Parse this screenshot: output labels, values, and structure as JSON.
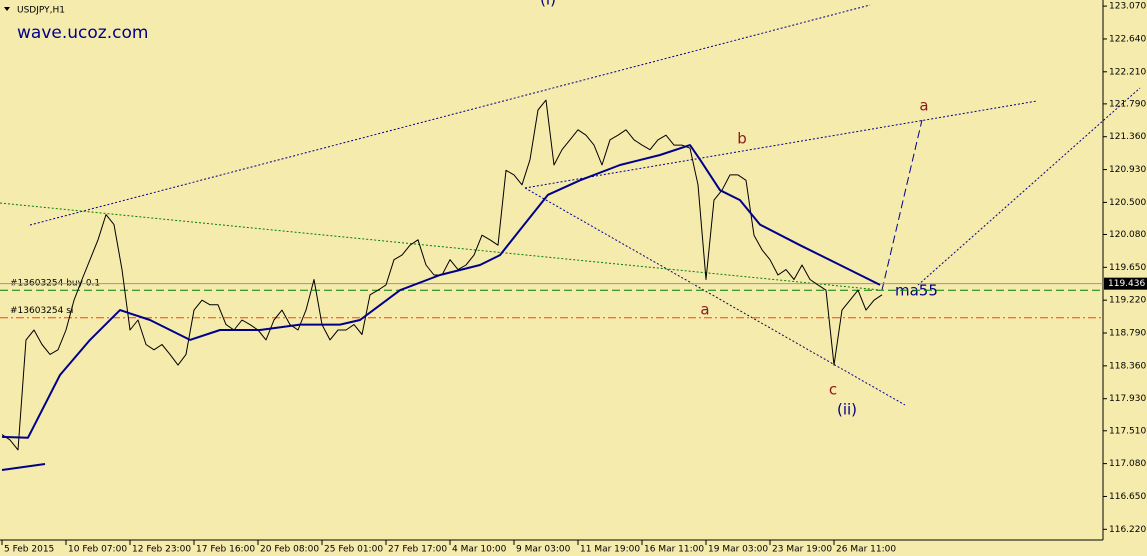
{
  "chart_data": {
    "type": "line",
    "title": "USDJPY,H1",
    "watermark": "wave.ucoz.com",
    "xlim": [
      0,
      110
    ],
    "ylim": [
      116.08,
      123.15
    ],
    "xticks": [
      {
        "value": 0,
        "label": "5 Feb 2015"
      },
      {
        "value": 8,
        "label": "10 Feb 07:00"
      },
      {
        "value": 16,
        "label": "12 Feb 23:00"
      },
      {
        "value": 24,
        "label": "17 Feb 16:00"
      },
      {
        "value": 32,
        "label": "20 Feb 08:00"
      },
      {
        "value": 40,
        "label": "25 Feb 01:00"
      },
      {
        "value": 48,
        "label": "27 Feb 17:00"
      },
      {
        "value": 56,
        "label": "4 Mar 10:00"
      },
      {
        "value": 64,
        "label": "9 Mar 03:00"
      },
      {
        "value": 72,
        "label": "11 Mar 19:00"
      },
      {
        "value": 80,
        "label": "16 Mar 11:00"
      },
      {
        "value": 88,
        "label": "19 Mar 03:00"
      },
      {
        "value": 96,
        "label": "23 Mar 19:00"
      },
      {
        "value": 104,
        "label": "26 Mar 11:00"
      }
    ],
    "yticks": [
      {
        "value": 123.07,
        "label": "123.070"
      },
      122.64,
      122.21,
      121.79,
      121.36,
      120.93,
      {
        "value": 120.5,
        "label": "120.500"
      },
      120.08,
      119.65,
      119.22,
      118.79,
      118.36,
      117.93,
      117.51,
      117.08,
      116.65,
      116.22
    ],
    "current_price": 119.436,
    "series": [
      {
        "name": "USDJPY",
        "color": "#000000",
        "values": [
          117.46,
          117.39,
          117.26,
          118.7,
          118.83,
          118.64,
          118.51,
          118.57,
          118.83,
          119.22,
          119.49,
          119.75,
          120.01,
          120.34,
          120.21,
          119.62,
          118.83,
          118.96,
          118.64,
          118.57,
          118.64,
          118.51,
          118.37,
          118.51,
          119.09,
          119.22,
          119.16,
          119.16,
          118.9,
          118.83,
          118.96,
          118.9,
          118.83,
          118.7,
          118.96,
          119.09,
          118.9,
          118.83,
          119.09,
          119.49,
          118.9,
          118.7,
          118.83,
          118.83,
          118.9,
          118.77,
          119.29,
          119.35,
          119.42,
          119.75,
          119.81,
          119.94,
          120.01,
          119.68,
          119.55,
          119.55,
          119.75,
          119.62,
          119.68,
          119.81,
          120.07,
          120.01,
          119.94,
          120.92,
          120.86,
          120.73,
          121.06,
          121.71,
          121.84,
          120.99,
          121.19,
          121.32,
          121.45,
          121.38,
          121.25,
          120.99,
          121.32,
          121.38,
          121.45,
          121.32,
          121.25,
          121.19,
          121.32,
          121.38,
          121.25,
          121.25,
          121.21,
          120.73,
          119.49,
          120.53,
          120.66,
          120.86,
          120.86,
          120.79,
          120.07,
          119.88,
          119.75,
          119.55,
          119.62,
          119.49,
          119.68,
          119.49,
          119.42,
          119.35,
          118.37,
          119.09,
          119.22,
          119.35,
          119.09,
          119.22,
          119.29
        ]
      },
      {
        "name": "ma55",
        "color": "#00008b",
        "x": [
          0,
          3.25,
          7.25,
          11,
          14.75,
          18.5,
          23.5,
          27.25,
          32.25,
          37.25,
          42.25,
          44.75,
          49.75,
          54.75,
          59.75,
          62.25,
          64.75,
          68.25,
          72.25,
          77.25,
          82.25,
          86,
          87.25,
          89.75,
          92.25,
          94.75,
          99.75,
          104.75,
          109.75
        ],
        "values": [
          117.43,
          117.42,
          118.24,
          118.7,
          119.09,
          118.96,
          118.7,
          118.83,
          118.83,
          118.9,
          118.9,
          118.96,
          119.35,
          119.55,
          119.68,
          119.81,
          120.14,
          120.6,
          120.79,
          120.99,
          121.12,
          121.25,
          121.06,
          120.66,
          120.53,
          120.21,
          119.94,
          119.68,
          119.42
        ]
      }
    ],
    "levels": [
      {
        "label": "#13603254 buy 0.1",
        "value": 119.35,
        "color": "#008000"
      },
      {
        "label": "#13603254 sl",
        "value": 118.99,
        "color": "#ff4500"
      }
    ],
    "annotations": [
      "(i)",
      "a",
      "b",
      "a",
      "c",
      "(ii)",
      "ma55"
    ]
  }
}
